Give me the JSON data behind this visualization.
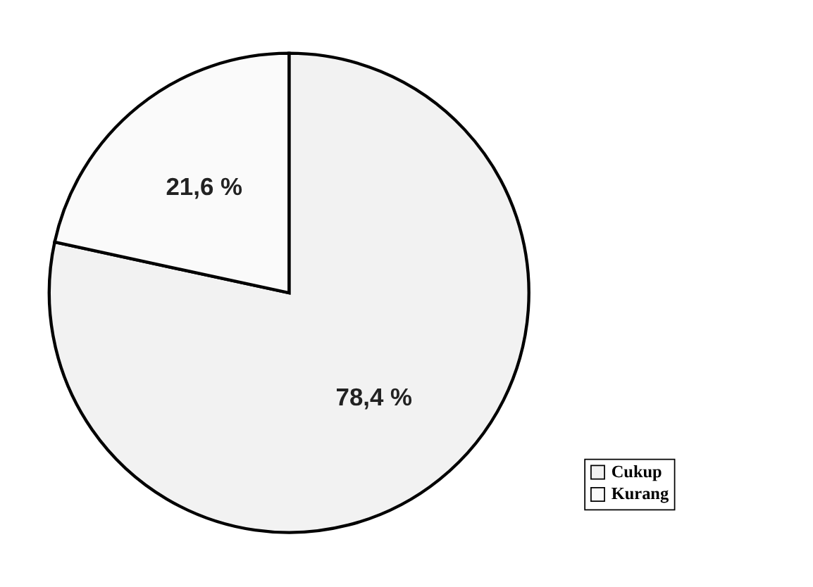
{
  "chart_data": {
    "type": "pie",
    "categories": [
      "Cukup",
      "Kurang"
    ],
    "values": [
      78.4,
      21.6
    ],
    "colors": [
      "#f2f2f2",
      "#fafafa"
    ],
    "value_labels": [
      "78,4 %",
      "21,6 %"
    ],
    "legend": "bottom right"
  }
}
